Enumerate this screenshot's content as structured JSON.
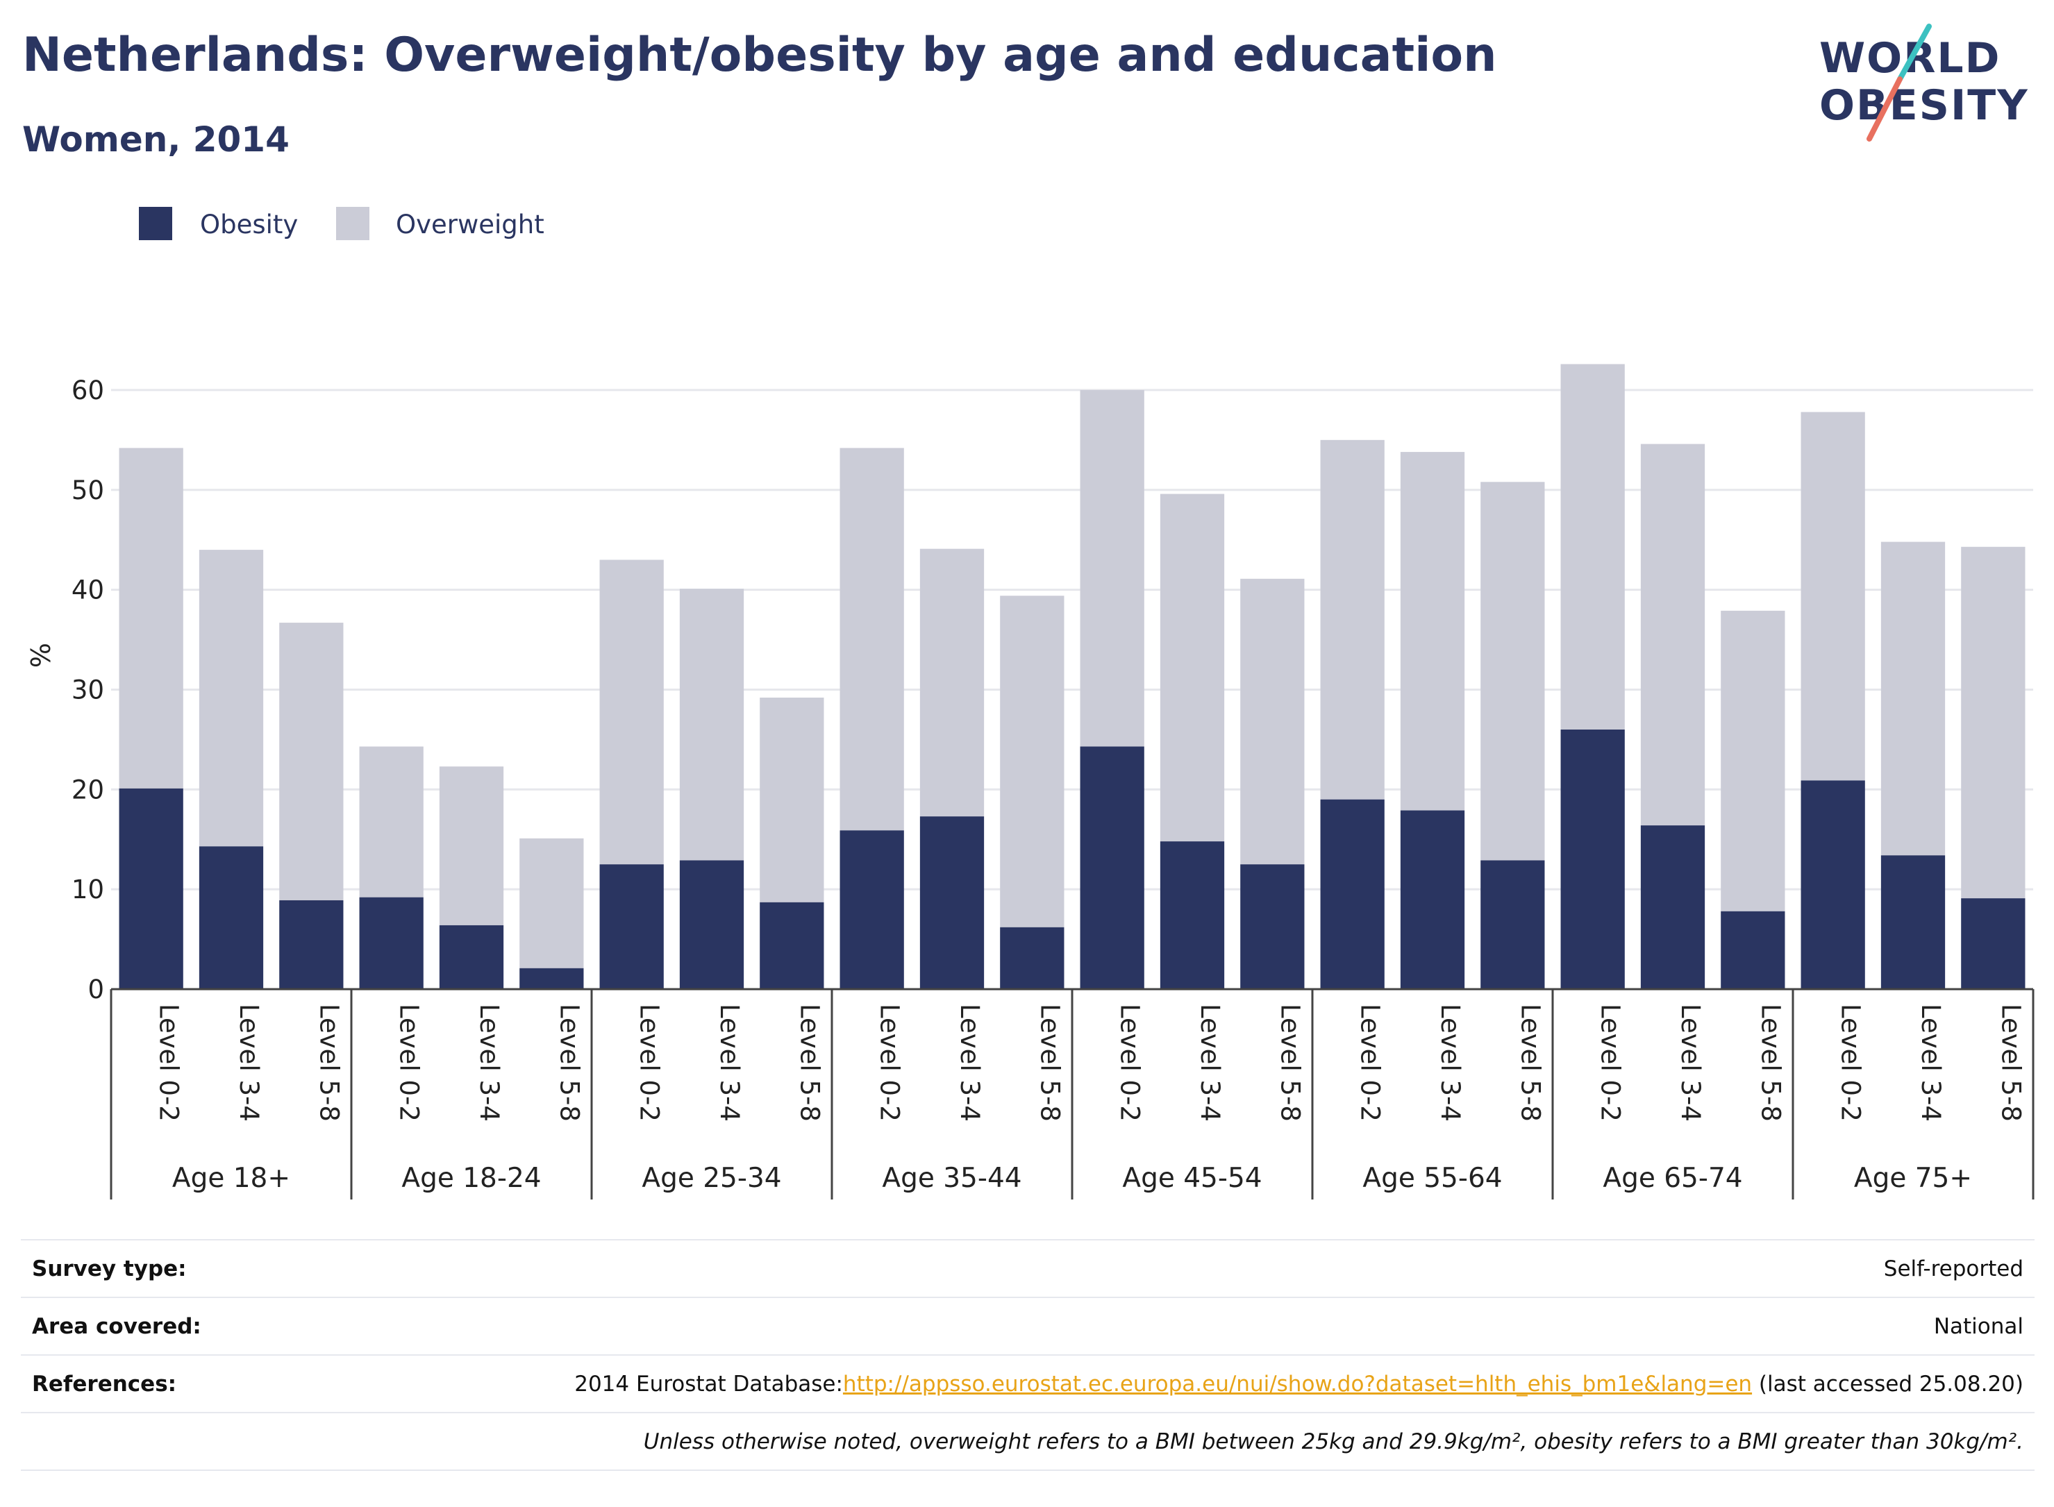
{
  "header": {
    "title": "Netherlands: Overweight/obesity by age and education",
    "subtitle": "Women, 2014",
    "logo_line1": "WORLD",
    "logo_line2": "OBESITY"
  },
  "colors": {
    "obesity": "#2a3561",
    "overweight": "#cbccd7",
    "text": "#2a3561",
    "logo_teal": "#3cc1c1",
    "logo_coral": "#e8705f",
    "link": "#e8a317"
  },
  "chart_data": {
    "type": "bar",
    "stacked": true,
    "ylabel": "%",
    "ylim": [
      0,
      65
    ],
    "yticks": [
      0,
      10,
      20,
      30,
      40,
      50,
      60
    ],
    "grid": true,
    "legend_position": "top-left",
    "groups": [
      "Age 18+",
      "Age 18-24",
      "Age 25-34",
      "Age 35-44",
      "Age 45-54",
      "Age 55-64",
      "Age 65-74",
      "Age 75+"
    ],
    "subcategories": [
      "Level 0-2",
      "Level 3-4",
      "Level 5-8"
    ],
    "series": [
      {
        "name": "Obesity",
        "values": [
          20.1,
          14.3,
          8.9,
          9.2,
          6.4,
          2.1,
          12.5,
          12.9,
          8.7,
          15.9,
          17.3,
          6.2,
          24.3,
          14.8,
          12.5,
          19.0,
          17.9,
          12.9,
          26.0,
          16.4,
          7.8,
          20.9,
          13.4,
          9.1
        ]
      },
      {
        "name": "Overweight",
        "values": [
          34.1,
          29.7,
          27.8,
          15.1,
          15.9,
          13.0,
          30.5,
          27.2,
          20.5,
          38.3,
          26.8,
          33.2,
          35.7,
          34.8,
          28.6,
          36.0,
          35.9,
          37.9,
          36.6,
          38.2,
          30.1,
          36.9,
          31.4,
          35.2
        ]
      }
    ]
  },
  "footer": {
    "survey_label": "Survey type:",
    "survey_value": "Self-reported",
    "area_label": "Area covered:",
    "area_value": "National",
    "ref_label": "References:",
    "ref_prefix": "2014 Eurostat Database:",
    "ref_link": "http://appsso.eurostat.ec.europa.eu/nui/show.do?dataset=hlth_ehis_bm1e&lang=en",
    "ref_suffix": " (last accessed 25.08.20)",
    "note": "Unless otherwise noted, overweight refers to a BMI between 25kg and 29.9kg/m², obesity refers to a BMI greater than 30kg/m²."
  }
}
